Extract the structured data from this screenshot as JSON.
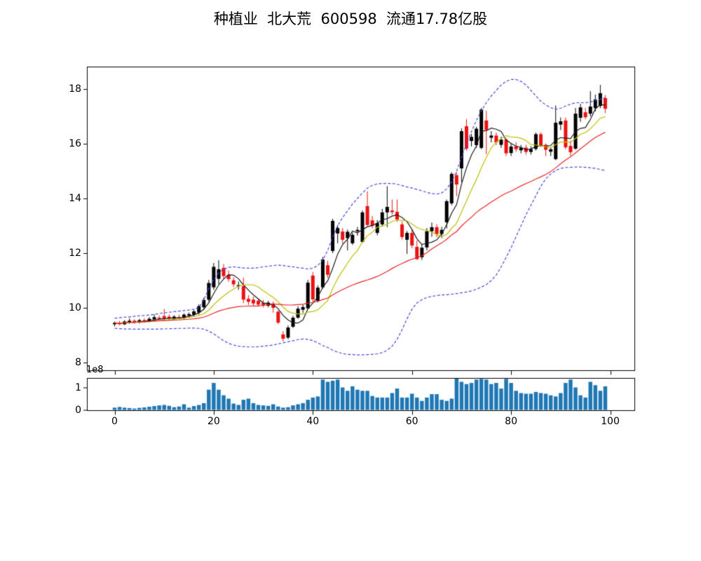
{
  "title": "种植业  北大荒  600598  流通17.78亿股",
  "offset_label": "1e8",
  "palette": {
    "candle_up": "#000000",
    "candle_down": "#ee1111",
    "ma_fast": "#1a1a1a",
    "ma_mid": "#bfbf00",
    "ma_slow": "#ef2020",
    "band": "#4848e0",
    "volume_bar": "#1f77b4",
    "axis": "#000000"
  },
  "chart_data": [
    {
      "type": "candlestick",
      "title": "种植业  北大荒  600598  流通17.78亿股",
      "xlabel": "",
      "ylabel": "",
      "ylim": [
        7.69,
        18.82
      ],
      "xlim": [
        -5.6,
        105.2
      ],
      "grid": false,
      "yticks": [
        8,
        10,
        12,
        14,
        16,
        18
      ],
      "ytick_labels": [
        "8",
        "10",
        "12",
        "14",
        "16",
        "18"
      ],
      "xticks": [
        0,
        20,
        40,
        60,
        80,
        100
      ],
      "xtick_labels": [
        "0",
        "20",
        "40",
        "60",
        "80",
        "100"
      ],
      "colors": {
        "up": "#000000",
        "down": "#ee1111"
      },
      "ohlc": [
        [
          9.4,
          9.5,
          9.32,
          9.45
        ],
        [
          9.45,
          9.52,
          9.36,
          9.4
        ],
        [
          9.4,
          9.55,
          9.37,
          9.5
        ],
        [
          9.48,
          9.62,
          9.42,
          9.53
        ],
        [
          9.53,
          9.58,
          9.42,
          9.46
        ],
        [
          9.46,
          9.6,
          9.43,
          9.55
        ],
        [
          9.55,
          9.62,
          9.47,
          9.51
        ],
        [
          9.51,
          9.66,
          9.47,
          9.6
        ],
        [
          9.58,
          9.76,
          9.52,
          9.66
        ],
        [
          9.64,
          9.72,
          9.55,
          9.62
        ],
        [
          9.7,
          9.96,
          9.52,
          9.6
        ],
        [
          9.68,
          9.76,
          9.55,
          9.61
        ],
        [
          9.6,
          9.73,
          9.54,
          9.68
        ],
        [
          9.66,
          9.75,
          9.59,
          9.64
        ],
        [
          9.62,
          9.8,
          9.58,
          9.75
        ],
        [
          9.72,
          9.83,
          9.65,
          9.77
        ],
        [
          9.75,
          9.93,
          9.68,
          9.87
        ],
        [
          9.83,
          10.13,
          9.76,
          10.06
        ],
        [
          10.02,
          10.37,
          9.93,
          10.29
        ],
        [
          10.3,
          11.02,
          10.22,
          10.91
        ],
        [
          10.75,
          11.64,
          10.66,
          11.5
        ],
        [
          11.06,
          11.74,
          10.86,
          11.41
        ],
        [
          11.46,
          11.6,
          11.05,
          11.16
        ],
        [
          11.21,
          11.36,
          10.95,
          11.05
        ],
        [
          11.01,
          11.12,
          10.76,
          10.86
        ],
        [
          10.81,
          10.96,
          10.66,
          10.83
        ],
        [
          10.79,
          11.1,
          10.17,
          10.3
        ],
        [
          10.33,
          10.46,
          10.1,
          10.22
        ],
        [
          10.3,
          10.41,
          10.08,
          10.16
        ],
        [
          10.26,
          10.33,
          10.05,
          10.12
        ],
        [
          10.18,
          10.29,
          10.02,
          10.09
        ],
        [
          10.08,
          10.26,
          10.02,
          10.19
        ],
        [
          10.16,
          10.23,
          9.82,
          10.0
        ],
        [
          9.86,
          9.91,
          9.4,
          9.46
        ],
        [
          9.03,
          9.15,
          8.77,
          8.87
        ],
        [
          8.91,
          9.36,
          8.85,
          9.28
        ],
        [
          9.31,
          9.71,
          9.26,
          9.64
        ],
        [
          9.64,
          10.06,
          9.6,
          9.97
        ],
        [
          9.93,
          10.12,
          9.81,
          10.03
        ],
        [
          9.98,
          11.02,
          9.95,
          10.92
        ],
        [
          11.18,
          11.31,
          10.21,
          10.31
        ],
        [
          10.26,
          10.82,
          10.2,
          10.74
        ],
        [
          10.75,
          11.86,
          10.7,
          11.77
        ],
        [
          11.56,
          11.72,
          11.1,
          11.21
        ],
        [
          12.08,
          13.26,
          12.0,
          13.18
        ],
        [
          12.72,
          13.02,
          12.36,
          12.92
        ],
        [
          12.79,
          12.92,
          12.35,
          12.49
        ],
        [
          12.55,
          12.86,
          12.1,
          12.78
        ],
        [
          12.36,
          12.76,
          12.3,
          12.67
        ],
        [
          12.8,
          12.96,
          12.64,
          12.85
        ],
        [
          12.41,
          13.56,
          12.38,
          13.49
        ],
        [
          13.72,
          14.26,
          12.99,
          13.03
        ],
        [
          13.2,
          13.36,
          12.9,
          13.0
        ],
        [
          12.74,
          13.21,
          12.65,
          13.1
        ],
        [
          13.05,
          13.62,
          13.0,
          13.49
        ],
        [
          13.49,
          14.45,
          12.95,
          13.69
        ],
        [
          13.56,
          13.96,
          13.4,
          13.5
        ],
        [
          13.51,
          13.96,
          13.15,
          13.23
        ],
        [
          13.05,
          13.16,
          12.5,
          12.59
        ],
        [
          12.49,
          12.81,
          11.97,
          12.74
        ],
        [
          12.74,
          12.86,
          12.18,
          12.28
        ],
        [
          12.23,
          12.46,
          11.76,
          11.78
        ],
        [
          11.85,
          12.32,
          11.75,
          12.2
        ],
        [
          12.21,
          12.92,
          12.1,
          12.8
        ],
        [
          12.8,
          13.12,
          12.6,
          12.95
        ],
        [
          12.95,
          13.06,
          12.58,
          12.7
        ],
        [
          12.7,
          12.96,
          12.55,
          12.85
        ],
        [
          13.13,
          13.96,
          12.9,
          13.9
        ],
        [
          13.82,
          14.96,
          13.75,
          14.9
        ],
        [
          14.85,
          14.96,
          14.08,
          14.51
        ],
        [
          15.1,
          16.56,
          14.6,
          16.46
        ],
        [
          16.64,
          16.9,
          15.75,
          15.82
        ],
        [
          16.1,
          16.36,
          15.9,
          16.25
        ],
        [
          15.95,
          16.62,
          15.85,
          16.55
        ],
        [
          15.85,
          17.31,
          15.8,
          17.25
        ],
        [
          16.85,
          17.21,
          15.62,
          16.51
        ],
        [
          16.22,
          16.46,
          16.05,
          16.3
        ],
        [
          16.3,
          16.41,
          15.95,
          16.05
        ],
        [
          15.96,
          16.26,
          15.85,
          16.15
        ],
        [
          16.15,
          16.21,
          15.55,
          15.65
        ],
        [
          15.66,
          16.01,
          15.55,
          15.9
        ],
        [
          15.9,
          16.06,
          15.7,
          15.8
        ],
        [
          15.76,
          15.96,
          15.65,
          15.85
        ],
        [
          15.86,
          15.96,
          15.6,
          15.7
        ],
        [
          15.7,
          15.91,
          15.6,
          15.8
        ],
        [
          15.81,
          16.41,
          15.75,
          16.35
        ],
        [
          16.35,
          16.41,
          15.88,
          15.95
        ],
        [
          15.96,
          16.01,
          15.55,
          15.78
        ],
        [
          15.71,
          15.86,
          15.55,
          15.8
        ],
        [
          15.44,
          17.4,
          15.4,
          16.77
        ],
        [
          16.7,
          16.96,
          16.5,
          16.82
        ],
        [
          16.85,
          16.96,
          15.8,
          15.87
        ],
        [
          15.92,
          16.11,
          15.55,
          15.69
        ],
        [
          15.82,
          17.31,
          15.78,
          17.1
        ],
        [
          16.95,
          17.46,
          16.8,
          17.33
        ],
        [
          17.15,
          17.31,
          16.9,
          16.97
        ],
        [
          17.1,
          17.92,
          17.0,
          17.36
        ],
        [
          17.3,
          17.8,
          17.18,
          17.62
        ],
        [
          17.38,
          18.15,
          17.3,
          17.85
        ],
        [
          17.67,
          17.78,
          17.12,
          17.28
        ]
      ],
      "overlays": [
        {
          "name": "ma-fast",
          "type": "sma",
          "period": 5,
          "color": "#1a1a1a",
          "style": "solid"
        },
        {
          "name": "ma-mid",
          "type": "sma",
          "period": 10,
          "color": "#bfbf00",
          "style": "solid"
        },
        {
          "name": "ma-slow",
          "type": "sma",
          "period": 30,
          "color": "#ef2020",
          "style": "solid"
        },
        {
          "name": "band-upper",
          "type": "line",
          "color": "#4848e0",
          "style": "dashed",
          "values": [
            9.62,
            9.64,
            9.66,
            9.67,
            9.69,
            9.71,
            9.72,
            9.74,
            9.76,
            9.79,
            9.82,
            9.84,
            9.86,
            9.88,
            9.9,
            9.92,
            9.95,
            10.0,
            10.3,
            10.7,
            11.05,
            11.28,
            11.42,
            11.48,
            11.5,
            11.48,
            11.46,
            11.45,
            11.45,
            11.47,
            11.5,
            11.52,
            11.55,
            11.56,
            11.55,
            11.52,
            11.5,
            11.47,
            11.45,
            11.42,
            11.45,
            11.55,
            11.75,
            12.1,
            12.6,
            13.0,
            13.3,
            13.55,
            13.8,
            14.0,
            14.2,
            14.38,
            14.48,
            14.53,
            14.55,
            14.55,
            14.55,
            14.52,
            14.47,
            14.42,
            14.38,
            14.33,
            14.28,
            14.22,
            14.18,
            14.16,
            14.2,
            14.35,
            14.6,
            15.0,
            15.5,
            16.0,
            16.45,
            16.85,
            17.2,
            17.5,
            17.75,
            17.95,
            18.15,
            18.28,
            18.35,
            18.35,
            18.28,
            18.15,
            17.95,
            17.75,
            17.55,
            17.42,
            17.32,
            17.26,
            17.3,
            17.38,
            17.45,
            17.5,
            17.5,
            17.5,
            17.53,
            17.58,
            17.63,
            17.68
          ]
        },
        {
          "name": "band-lower",
          "type": "line",
          "color": "#4848e0",
          "style": "dashed",
          "values": [
            9.25,
            9.24,
            9.23,
            9.23,
            9.22,
            9.22,
            9.22,
            9.22,
            9.22,
            9.23,
            9.23,
            9.24,
            9.24,
            9.25,
            9.25,
            9.26,
            9.26,
            9.25,
            9.22,
            9.15,
            9.05,
            8.92,
            8.8,
            8.7,
            8.64,
            8.6,
            8.58,
            8.57,
            8.57,
            8.58,
            8.6,
            8.62,
            8.64,
            8.68,
            8.72,
            8.76,
            8.8,
            8.84,
            8.86,
            8.85,
            8.8,
            8.72,
            8.62,
            8.55,
            8.45,
            8.38,
            8.33,
            8.3,
            8.29,
            8.28,
            8.28,
            8.29,
            8.3,
            8.32,
            8.36,
            8.45,
            8.6,
            8.85,
            9.2,
            9.6,
            9.95,
            10.18,
            10.3,
            10.38,
            10.42,
            10.45,
            10.47,
            10.48,
            10.5,
            10.52,
            10.55,
            10.58,
            10.62,
            10.68,
            10.76,
            10.85,
            11.0,
            11.2,
            11.5,
            11.85,
            12.2,
            12.6,
            13.0,
            13.4,
            13.75,
            14.1,
            14.45,
            14.72,
            14.9,
            15.02,
            15.1,
            15.13,
            15.14,
            15.15,
            15.15,
            15.14,
            15.12,
            15.1,
            15.06,
            15.02
          ]
        }
      ]
    },
    {
      "type": "bar",
      "title": "",
      "xlabel": "",
      "ylabel": "",
      "unit_label": "1e8",
      "ylim": [
        0,
        1.45
      ],
      "yticks": [
        0,
        1
      ],
      "ytick_labels": [
        "0",
        "1"
      ],
      "xticks": [
        0,
        20,
        40,
        60,
        80,
        100
      ],
      "xtick_labels": [
        "0",
        "20",
        "40",
        "60",
        "80",
        "100"
      ],
      "color": "#1f77b4",
      "values": [
        0.1,
        0.13,
        0.1,
        0.08,
        0.06,
        0.09,
        0.11,
        0.14,
        0.17,
        0.2,
        0.22,
        0.18,
        0.12,
        0.15,
        0.25,
        0.1,
        0.17,
        0.22,
        0.3,
        0.9,
        1.2,
        0.9,
        0.65,
        0.5,
        0.28,
        0.22,
        0.45,
        0.5,
        0.3,
        0.22,
        0.2,
        0.18,
        0.25,
        0.15,
        0.1,
        0.12,
        0.2,
        0.25,
        0.3,
        0.45,
        0.55,
        0.6,
        1.35,
        1.25,
        1.3,
        1.35,
        1.0,
        0.85,
        1.05,
        0.9,
        0.85,
        0.85,
        0.62,
        0.55,
        0.55,
        0.55,
        0.75,
        0.95,
        0.55,
        0.55,
        0.72,
        0.55,
        0.4,
        0.55,
        0.7,
        0.7,
        0.45,
        0.4,
        0.5,
        1.4,
        1.25,
        1.15,
        1.2,
        1.35,
        1.38,
        1.35,
        1.15,
        1.2,
        0.95,
        1.38,
        1.2,
        0.85,
        0.75,
        0.72,
        0.72,
        0.8,
        0.75,
        0.72,
        0.65,
        0.6,
        0.75,
        1.2,
        1.35,
        1.0,
        0.65,
        0.55,
        1.25,
        1.1,
        0.85,
        1.05
      ]
    }
  ]
}
